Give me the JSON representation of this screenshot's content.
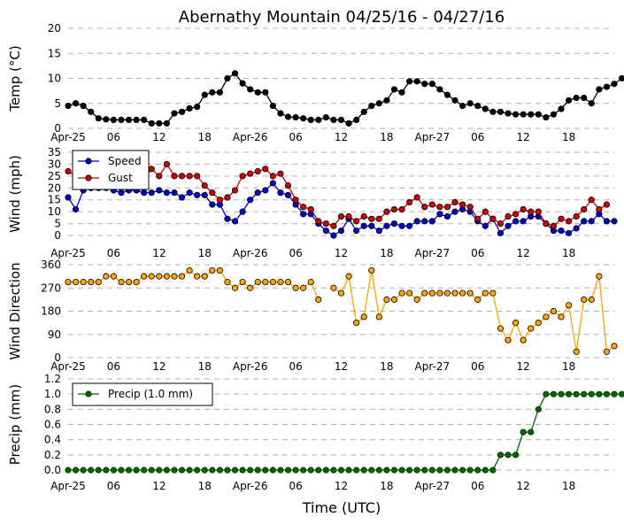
{
  "chart_data": {
    "type": "line",
    "title": "Abernathy Mountain 04/25/16 - 04/27/16",
    "xlabel": "Time (UTC)",
    "x_tick_labels": [
      "Apr-25",
      "06",
      "12",
      "18",
      "Apr-26",
      "06",
      "12",
      "18",
      "Apr-27",
      "06",
      "12",
      "18"
    ],
    "x_range_hours": [
      0,
      72
    ],
    "grid": "horizontal dashed",
    "legend_position": "top-left",
    "colors": {
      "temp": "#000000",
      "speed": "#0000cc",
      "gust": "#cc0000",
      "direction": "#ffa500",
      "precip": "#006400",
      "grid": "#b0b0b0"
    },
    "panels": [
      {
        "ylabel": "Temp (°C)",
        "ylim": [
          0,
          20
        ],
        "yticks": [
          0,
          5,
          10,
          15,
          20
        ],
        "series": [
          {
            "key": "temp",
            "legend": false,
            "marker_edge": "#000000",
            "values": [
              4.5,
              5,
              4.5,
              3.3,
              2,
              1.8,
              1.7,
              1.7,
              1.7,
              1.7,
              1.7,
              1,
              1,
              1,
              3,
              3.3,
              4,
              4.3,
              6.7,
              7.2,
              7.2,
              10,
              11,
              9,
              7.8,
              7.2,
              7.2,
              4.5,
              3,
              2.3,
              2.2,
              2,
              1.7,
              1.7,
              2.2,
              1.7,
              1.7,
              1,
              1.7,
              3.3,
              4.5,
              5,
              5.6,
              7.8,
              7.2,
              9.4,
              9.4,
              8.9,
              8.9,
              7.8,
              6.7,
              5.6,
              4.5,
              5,
              4.5,
              3.9,
              3.3,
              3.3,
              3,
              2.8,
              2.8,
              2.8,
              2.8,
              2.2,
              2.8,
              3.9,
              5.6,
              6.1,
              6.1,
              5,
              7.8,
              8.3,
              8.9,
              10
            ]
          }
        ]
      },
      {
        "ylabel": "Wind (mph)",
        "ylim": [
          0,
          35
        ],
        "yticks": [
          0,
          5,
          10,
          15,
          20,
          25,
          30,
          35
        ],
        "series": [
          {
            "key": "speed",
            "name": "Speed",
            "legend": true,
            "marker_edge": "#000000",
            "values": [
              16,
              11,
              19,
              20,
              20,
              20,
              19,
              18,
              19,
              19,
              18,
              18,
              19,
              18,
              18,
              16,
              18,
              17,
              17,
              13,
              13,
              7,
              6,
              10,
              15,
              18,
              19,
              22,
              18,
              17,
              13,
              9,
              9,
              5,
              2,
              0,
              2,
              7,
              2,
              4,
              4,
              2,
              4,
              5,
              4,
              4,
              6,
              6,
              6,
              9,
              8,
              10,
              11,
              10,
              6,
              4,
              7,
              1,
              4,
              6,
              6,
              8,
              8,
              5,
              2,
              2,
              1,
              3,
              6,
              6,
              9,
              6,
              6
            ]
          },
          {
            "key": "gust",
            "name": "Gust",
            "legend": true,
            "marker_edge": "#000000",
            "values": [
              27,
              25,
              22,
              22,
              23,
              23,
              22,
              21,
              23,
              23,
              24,
              28,
              25,
              30,
              25,
              25,
              25,
              25,
              21,
              18,
              15,
              16,
              19,
              25,
              26,
              27,
              28,
              25,
              26,
              21,
              15,
              12,
              11,
              6,
              5,
              4,
              8,
              8,
              6,
              8,
              7,
              7,
              10,
              11,
              11,
              14,
              16,
              12,
              13,
              12,
              12,
              14,
              13,
              12,
              7,
              10,
              7,
              5,
              8,
              9,
              11,
              10,
              10,
              5,
              4,
              7,
              6,
              8,
              11,
              15,
              11,
              13
            ]
          }
        ]
      },
      {
        "ylabel": "Wind Direction",
        "ylim": [
          0,
          360
        ],
        "yticks": [
          0,
          90,
          180,
          270,
          360
        ],
        "series": [
          {
            "key": "direction",
            "legend": false,
            "marker_edge": "#000000",
            "values": [
              293,
              293,
              293,
              293,
              293,
              315,
              315,
              293,
              293,
              293,
              315,
              315,
              315,
              315,
              315,
              315,
              338,
              315,
              315,
              338,
              338,
              293,
              270,
              293,
              270,
              293,
              293,
              293,
              293,
              293,
              270,
              270,
              293,
              225,
              null,
              270,
              250,
              315,
              135,
              158,
              338,
              158,
              225,
              225,
              250,
              250,
              225,
              250,
              250,
              250,
              250,
              250,
              250,
              250,
              225,
              250,
              250,
              113,
              68,
              135,
              68,
              113,
              135,
              158,
              180,
              158,
              203,
              23,
              225,
              225,
              315,
              23,
              45
            ]
          }
        ]
      },
      {
        "ylabel": "Precip (mm)",
        "ylim": [
          0,
          1.2
        ],
        "yticks": [
          0.0,
          0.2,
          0.4,
          0.6,
          0.8,
          1.0,
          1.2
        ],
        "series": [
          {
            "key": "precip",
            "name": "Precip (1.0 mm)",
            "legend": true,
            "marker_edge": "#003300",
            "values": [
              0,
              0,
              0,
              0,
              0,
              0,
              0,
              0,
              0,
              0,
              0,
              0,
              0,
              0,
              0,
              0,
              0,
              0,
              0,
              0,
              0,
              0,
              0,
              0,
              0,
              0,
              0,
              0,
              0,
              0,
              0,
              0,
              0,
              0,
              0,
              0,
              0,
              0,
              0,
              0,
              0,
              0,
              0,
              0,
              0,
              0,
              0,
              0,
              0,
              0,
              0,
              0,
              0,
              0,
              0,
              0,
              0,
              0.2,
              0.2,
              0.2,
              0.5,
              0.5,
              0.8,
              1,
              1,
              1,
              1,
              1,
              1,
              1,
              1,
              1,
              1,
              1
            ]
          }
        ]
      }
    ]
  }
}
